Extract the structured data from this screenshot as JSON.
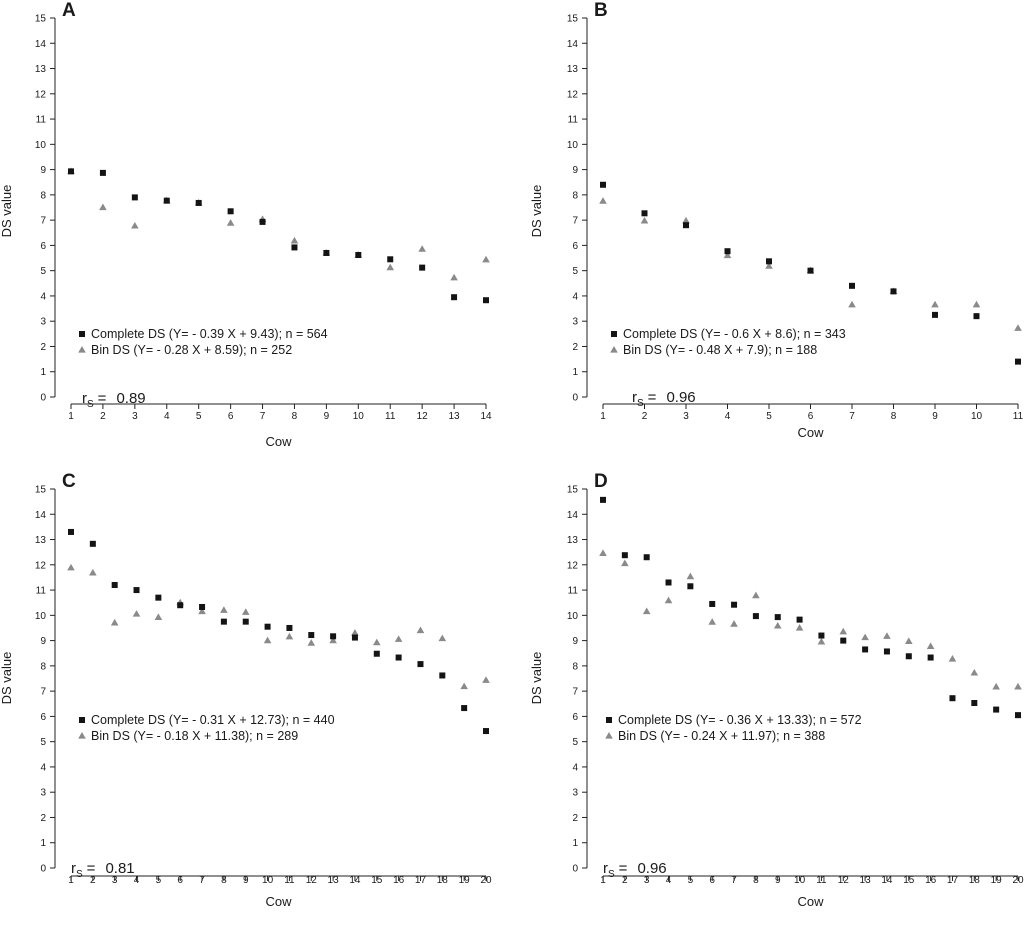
{
  "figure": {
    "x_axis_title": "Cow",
    "y_axis_title": "DS value"
  },
  "colors": {
    "complete": "#141414",
    "bin": "#8a8a8a",
    "axis": "#222222"
  },
  "chart_data": [
    {
      "panel": "A",
      "type": "scatter",
      "xlabel": "Cow",
      "ylabel": "DS value",
      "x": [
        1,
        2,
        3,
        4,
        5,
        6,
        7,
        8,
        9,
        10,
        11,
        12,
        13,
        14
      ],
      "xlim": [
        1,
        14
      ],
      "ylim": [
        0,
        15
      ],
      "y_ticks": [
        0,
        1,
        2,
        3,
        4,
        5,
        6,
        7,
        8,
        9,
        10,
        11,
        12,
        13,
        14,
        15
      ],
      "series": [
        {
          "name": "Complete DS (Y= - 0.39 X + 9.43); n = 564",
          "marker": "square",
          "values": [
            8.93,
            8.87,
            7.9,
            7.77,
            7.68,
            7.35,
            6.93,
            5.92,
            5.7,
            5.62,
            5.45,
            5.12,
            3.95,
            3.83
          ]
        },
        {
          "name": "Bin DS (Y= - 0.28 X + 8.59); n = 252",
          "marker": "triangle",
          "values": [
            8.93,
            7.5,
            6.77,
            7.77,
            7.68,
            6.88,
            7.03,
            6.18,
            5.7,
            5.62,
            5.12,
            5.85,
            4.72,
            5.43
          ]
        }
      ],
      "rs_label": "r",
      "rs_sub": "S",
      "rs_eq": "=",
      "rs_value": "0.89"
    },
    {
      "panel": "B",
      "type": "scatter",
      "xlabel": "Cow",
      "ylabel": "DS value",
      "x": [
        1,
        2,
        3,
        4,
        5,
        6,
        7,
        8,
        9,
        10,
        11
      ],
      "xlim": [
        1,
        11
      ],
      "ylim": [
        0,
        15
      ],
      "y_ticks": [
        0,
        1,
        2,
        3,
        4,
        5,
        6,
        7,
        8,
        9,
        10,
        11,
        12,
        13,
        14,
        15
      ],
      "series": [
        {
          "name": "Complete DS (Y= - 0.6 X + 8.6); n = 343",
          "marker": "square",
          "values": [
            8.4,
            7.27,
            6.8,
            5.77,
            5.37,
            5.0,
            4.4,
            4.18,
            3.25,
            3.2,
            1.4
          ]
        },
        {
          "name": "Bin DS (Y= - 0.48 X + 7.9); n = 188",
          "marker": "triangle",
          "values": [
            7.75,
            6.97,
            6.97,
            5.6,
            5.18,
            5.0,
            3.65,
            4.18,
            3.65,
            3.65,
            2.72
          ]
        }
      ],
      "rs_label": "r",
      "rs_sub": "S",
      "rs_eq": "=",
      "rs_value": "0.96"
    },
    {
      "panel": "C",
      "type": "scatter",
      "xlabel": "Cow",
      "ylabel": "DS value",
      "x": [
        1,
        2,
        3,
        4,
        5,
        6,
        7,
        8,
        9,
        10,
        11,
        12,
        13,
        14,
        15,
        16,
        17,
        18,
        19,
        20
      ],
      "xlim": [
        1,
        20
      ],
      "ylim": [
        0,
        15
      ],
      "y_ticks": [
        0,
        1,
        2,
        3,
        4,
        5,
        6,
        7,
        8,
        9,
        10,
        11,
        12,
        13,
        14,
        15
      ],
      "series": [
        {
          "name": "Complete DS (Y= - 0.31 X + 12.73); n = 440",
          "marker": "square",
          "values": [
            13.3,
            12.83,
            11.2,
            11.0,
            10.7,
            10.4,
            10.33,
            9.75,
            9.75,
            9.55,
            9.5,
            9.22,
            9.17,
            9.12,
            8.48,
            8.33,
            8.07,
            7.62,
            6.33,
            5.42
          ]
        },
        {
          "name": "Bin DS (Y= - 0.18 X + 11.38); n = 289",
          "marker": "triangle",
          "values": [
            11.88,
            11.68,
            9.7,
            10.05,
            9.92,
            10.5,
            10.15,
            10.2,
            10.12,
            9.0,
            9.15,
            8.9,
            9.0,
            9.3,
            8.92,
            9.05,
            9.4,
            9.08,
            7.18,
            7.43
          ]
        }
      ],
      "rs_label": "r",
      "rs_sub": "S",
      "rs_eq": "=",
      "rs_value": "0.81"
    },
    {
      "panel": "D",
      "type": "scatter",
      "xlabel": "Cow",
      "ylabel": "DS value",
      "x": [
        1,
        2,
        3,
        4,
        5,
        6,
        7,
        8,
        9,
        10,
        11,
        12,
        13,
        14,
        15,
        16,
        17,
        18,
        19,
        20
      ],
      "xlim": [
        1,
        20
      ],
      "ylim": [
        0,
        15
      ],
      "y_ticks": [
        0,
        1,
        2,
        3,
        4,
        5,
        6,
        7,
        8,
        9,
        10,
        11,
        12,
        13,
        14,
        15
      ],
      "series": [
        {
          "name": "Complete DS (Y= - 0.36 X + 13.33); n = 572",
          "marker": "square",
          "values": [
            14.57,
            12.38,
            12.3,
            11.3,
            11.15,
            10.45,
            10.42,
            9.97,
            9.93,
            9.83,
            9.2,
            9.0,
            8.65,
            8.57,
            8.38,
            8.33,
            6.72,
            6.53,
            6.27,
            6.05
          ]
        },
        {
          "name": "Bin DS (Y= - 0.24 X + 11.97); n = 388",
          "marker": "triangle",
          "values": [
            12.45,
            12.05,
            10.15,
            10.58,
            11.53,
            9.73,
            9.65,
            10.78,
            9.58,
            9.5,
            8.95,
            9.35,
            9.12,
            9.17,
            8.97,
            8.77,
            8.27,
            7.72,
            7.17,
            7.17
          ]
        }
      ],
      "rs_label": "r",
      "rs_sub": "S",
      "rs_eq": "=",
      "rs_value": "0.96"
    }
  ]
}
